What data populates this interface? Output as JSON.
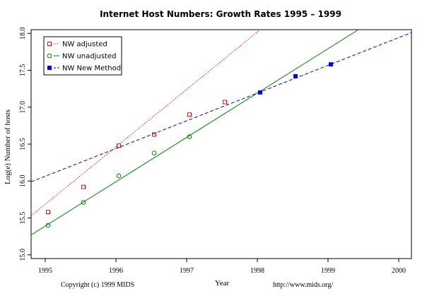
{
  "chart_data": {
    "type": "line",
    "title": "Internet Host Numbers: Growth Rates 1995 – 1999",
    "xlabel": "Year",
    "ylabel": "Log(e) Number of hosts",
    "xlim": [
      1994.8,
      2000.18
    ],
    "ylim": [
      14.95,
      18.05
    ],
    "xticks": [
      1995,
      1996,
      1997,
      1998,
      1999,
      2000
    ],
    "yticks": [
      15.0,
      15.5,
      16.0,
      16.5,
      17.0,
      17.5,
      18.0
    ],
    "ytick_labels": [
      "15.0",
      "15.5",
      "16.0",
      "16.5",
      "17.0",
      "17.5",
      "18.0"
    ],
    "legend_position": "top-left",
    "series": [
      {
        "name": "NW adjusted",
        "color": "#ff0000",
        "marker": "open-square",
        "line_style": "dotted",
        "points": [
          [
            1995.04,
            15.58
          ],
          [
            1995.54,
            15.92
          ],
          [
            1996.04,
            16.48
          ],
          [
            1996.54,
            16.63
          ],
          [
            1997.04,
            16.9
          ],
          [
            1997.54,
            17.07
          ]
        ],
        "fit_line": [
          [
            1994.8,
            15.53
          ],
          [
            1998.04,
            18.05
          ]
        ]
      },
      {
        "name": "NW unadjusted",
        "color": "#008000",
        "marker": "open-circle",
        "line_style": "solid",
        "points": [
          [
            1995.04,
            15.4
          ],
          [
            1995.54,
            15.71
          ],
          [
            1996.04,
            16.07
          ],
          [
            1996.54,
            16.38
          ],
          [
            1997.04,
            16.6
          ]
        ],
        "fit_line": [
          [
            1994.8,
            15.27
          ],
          [
            1999.43,
            18.05
          ]
        ]
      },
      {
        "name": "NW New Method",
        "color": "#0000ff",
        "marker": "filled-square",
        "line_style": "dashed",
        "points": [
          [
            1998.04,
            17.2
          ],
          [
            1998.54,
            17.42
          ],
          [
            1999.04,
            17.58
          ]
        ],
        "fit_line": [
          [
            1994.8,
            15.99
          ],
          [
            2000.18,
            18.01
          ]
        ]
      }
    ]
  },
  "footer": {
    "copyright": "Copyright (c) 1999 MIDS",
    "url": "http://www.mids.org/"
  }
}
